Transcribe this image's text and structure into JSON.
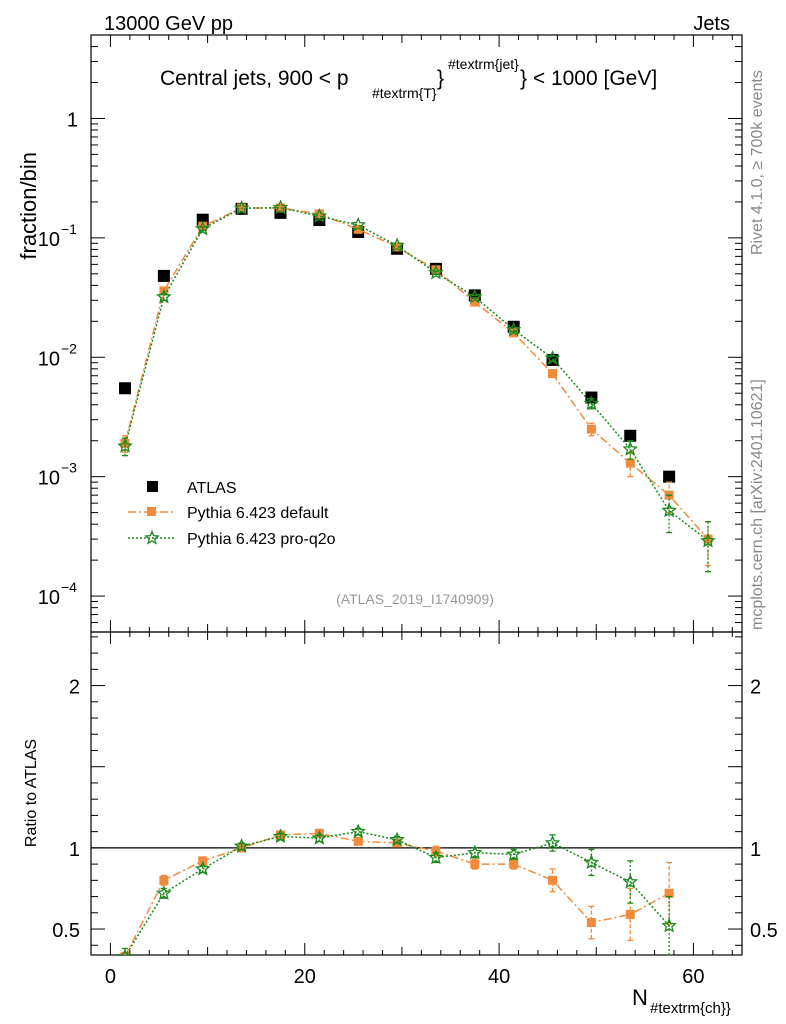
{
  "header": {
    "left": "13000 GeV pp",
    "right": "Jets"
  },
  "side_labels": {
    "top": "Rivet 4.1.0, ≥ 700k events",
    "bottom": "mcplots.cern.ch [arXiv:2401.10621]"
  },
  "title_parts": {
    "prefix": "Central jets, 900 < p",
    "sub1": "#textrm{T}",
    "brace": "}",
    "sup": "#textrm{jet}",
    "suffix": "} < 1000 [GeV]"
  },
  "watermark": "(ATLAS_2019_I1740909)",
  "xlabel": {
    "main": "N",
    "sub": "#textrm{ch}}"
  },
  "legend": [
    {
      "label": "ATLAS",
      "key": "atlas"
    },
    {
      "label": "Pythia 6.423 default",
      "key": "default"
    },
    {
      "label": "Pythia 6.423 pro-q2o",
      "key": "proq2o"
    }
  ],
  "colors": {
    "atlas": "#000000",
    "default": "#f28a3c",
    "proq2o": "#1a8a1a"
  },
  "chart_data": [
    {
      "type": "scatter",
      "panel": "main",
      "yscale": "log",
      "ylabel": "fraction/bin",
      "xlim": [
        -2,
        65
      ],
      "ylim": [
        5e-05,
        5
      ],
      "yticks": [
        {
          "value": 0.0001,
          "base": "10",
          "exp": "−4"
        },
        {
          "value": 0.001,
          "base": "10",
          "exp": "−3"
        },
        {
          "value": 0.01,
          "base": "10",
          "exp": "−2"
        },
        {
          "value": 0.1,
          "base": "10",
          "exp": "−1"
        },
        {
          "value": 1,
          "base": "1",
          "exp": ""
        }
      ],
      "series": [
        {
          "name": "ATLAS",
          "key": "atlas",
          "x": [
            1.5,
            5.5,
            9.5,
            13.5,
            17.5,
            21.5,
            25.5,
            29.5,
            33.5,
            37.5,
            41.5,
            45.5,
            49.5,
            53.5,
            57.5
          ],
          "y": [
            0.0055,
            0.048,
            0.142,
            0.175,
            0.162,
            0.141,
            0.112,
            0.081,
            0.055,
            0.033,
            0.018,
            0.0095,
            0.0046,
            0.0022,
            0.001
          ]
        },
        {
          "name": "Pythia 6.423 default",
          "key": "default",
          "x": [
            1.5,
            5.5,
            9.5,
            13.5,
            17.5,
            21.5,
            25.5,
            29.5,
            33.5,
            37.5,
            41.5,
            45.5,
            49.5,
            53.5,
            57.5,
            61.5
          ],
          "y": [
            0.0019,
            0.036,
            0.125,
            0.178,
            0.178,
            0.159,
            0.118,
            0.084,
            0.054,
            0.029,
            0.016,
            0.0073,
            0.0025,
            0.0013,
            0.0007,
            0.0003
          ],
          "err": [
            0.0003,
            0.002,
            0.004,
            0.004,
            0.004,
            0.004,
            0.003,
            0.002,
            0.0015,
            0.001,
            0.0006,
            0.0005,
            0.0003,
            0.0003,
            0.0002,
            0.00012
          ]
        },
        {
          "name": "Pythia 6.423 pro-q2o",
          "key": "proq2o",
          "x": [
            1.5,
            5.5,
            9.5,
            13.5,
            17.5,
            21.5,
            25.5,
            29.5,
            33.5,
            37.5,
            41.5,
            45.5,
            49.5,
            53.5,
            57.5,
            61.5
          ],
          "y": [
            0.0018,
            0.032,
            0.119,
            0.177,
            0.179,
            0.152,
            0.128,
            0.086,
            0.051,
            0.032,
            0.017,
            0.0098,
            0.0041,
            0.0017,
            0.00052,
            0.00029
          ],
          "err": [
            0.0003,
            0.002,
            0.004,
            0.004,
            0.004,
            0.004,
            0.003,
            0.002,
            0.0015,
            0.001,
            0.0006,
            0.0005,
            0.0004,
            0.0003,
            0.00018,
            0.00013
          ]
        }
      ]
    },
    {
      "type": "scatter",
      "panel": "ratio",
      "yscale": "linear",
      "ylabel": "Ratio to ATLAS",
      "xlabel": "N_ch",
      "xlim": [
        -2,
        65
      ],
      "ylim": [
        0.34,
        2.33
      ],
      "xticks": [
        0,
        20,
        40,
        60
      ],
      "yticks": [
        0.5,
        1,
        2
      ],
      "reference_line": 1,
      "series": [
        {
          "name": "Pythia 6.423 default",
          "key": "default",
          "x": [
            1.5,
            5.5,
            9.5,
            13.5,
            17.5,
            21.5,
            25.5,
            29.5,
            33.5,
            37.5,
            41.5,
            45.5,
            49.5,
            53.5,
            57.5
          ],
          "y": [
            0.33,
            0.8,
            0.92,
            1.0,
            1.08,
            1.09,
            1.04,
            1.03,
            0.98,
            0.9,
            0.9,
            0.8,
            0.54,
            0.59,
            0.72
          ],
          "err": [
            0.05,
            0.03,
            0.02,
            0.02,
            0.02,
            0.02,
            0.02,
            0.02,
            0.03,
            0.03,
            0.03,
            0.07,
            0.1,
            0.16,
            0.19
          ]
        },
        {
          "name": "Pythia 6.423 pro-q2o",
          "key": "proq2o",
          "x": [
            1.5,
            5.5,
            9.5,
            13.5,
            17.5,
            21.5,
            25.5,
            29.5,
            33.5,
            37.5,
            41.5,
            45.5,
            49.5,
            53.5,
            57.5
          ],
          "y": [
            0.33,
            0.72,
            0.87,
            1.01,
            1.07,
            1.06,
            1.1,
            1.05,
            0.94,
            0.97,
            0.96,
            1.03,
            0.91,
            0.79,
            0.52
          ],
          "err": [
            0.05,
            0.03,
            0.02,
            0.02,
            0.02,
            0.02,
            0.02,
            0.02,
            0.03,
            0.03,
            0.03,
            0.05,
            0.08,
            0.13,
            0.18
          ]
        }
      ]
    }
  ]
}
